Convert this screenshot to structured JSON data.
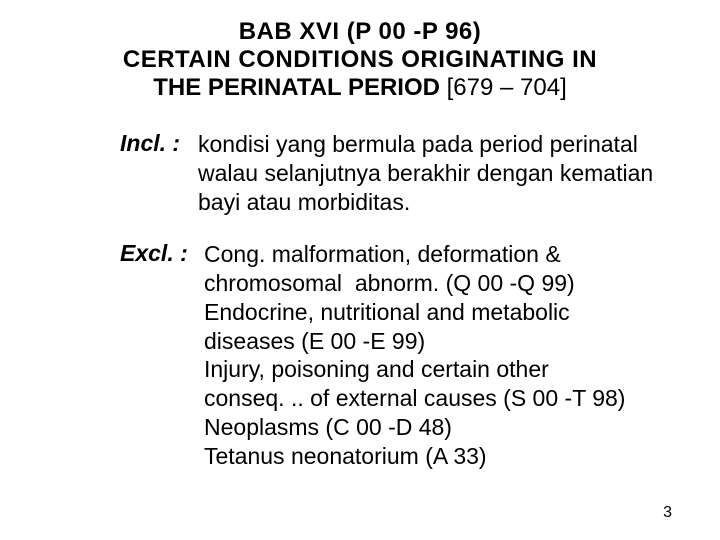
{
  "header": {
    "line1": "BAB  XVI  (P 00 -P 96)",
    "line2": "CERTAIN CONDITIONS ORIGINATING IN",
    "line3_bold": "THE PERINATAL PERIOD ",
    "line3_normal": "[679 – 704]"
  },
  "incl": {
    "label": "Incl. :",
    "text": "kondisi yang bermula pada period perinatal walau selanjutnya berakhir dengan kematian bayi atau morbiditas."
  },
  "excl": {
    "label": "Excl. :",
    "text": "Cong. malformation, deformation & chromosomal  abnorm. (Q 00 -Q 99) Endocrine, nutritional and metabolic diseases (E 00 -E 99)\nInjury, poisoning and certain other conseq. .. of external causes (S 00 -T 98) Neoplasms (C 00 -D 48)\nTetanus neonatorium (A 33)"
  },
  "page_number": "3"
}
